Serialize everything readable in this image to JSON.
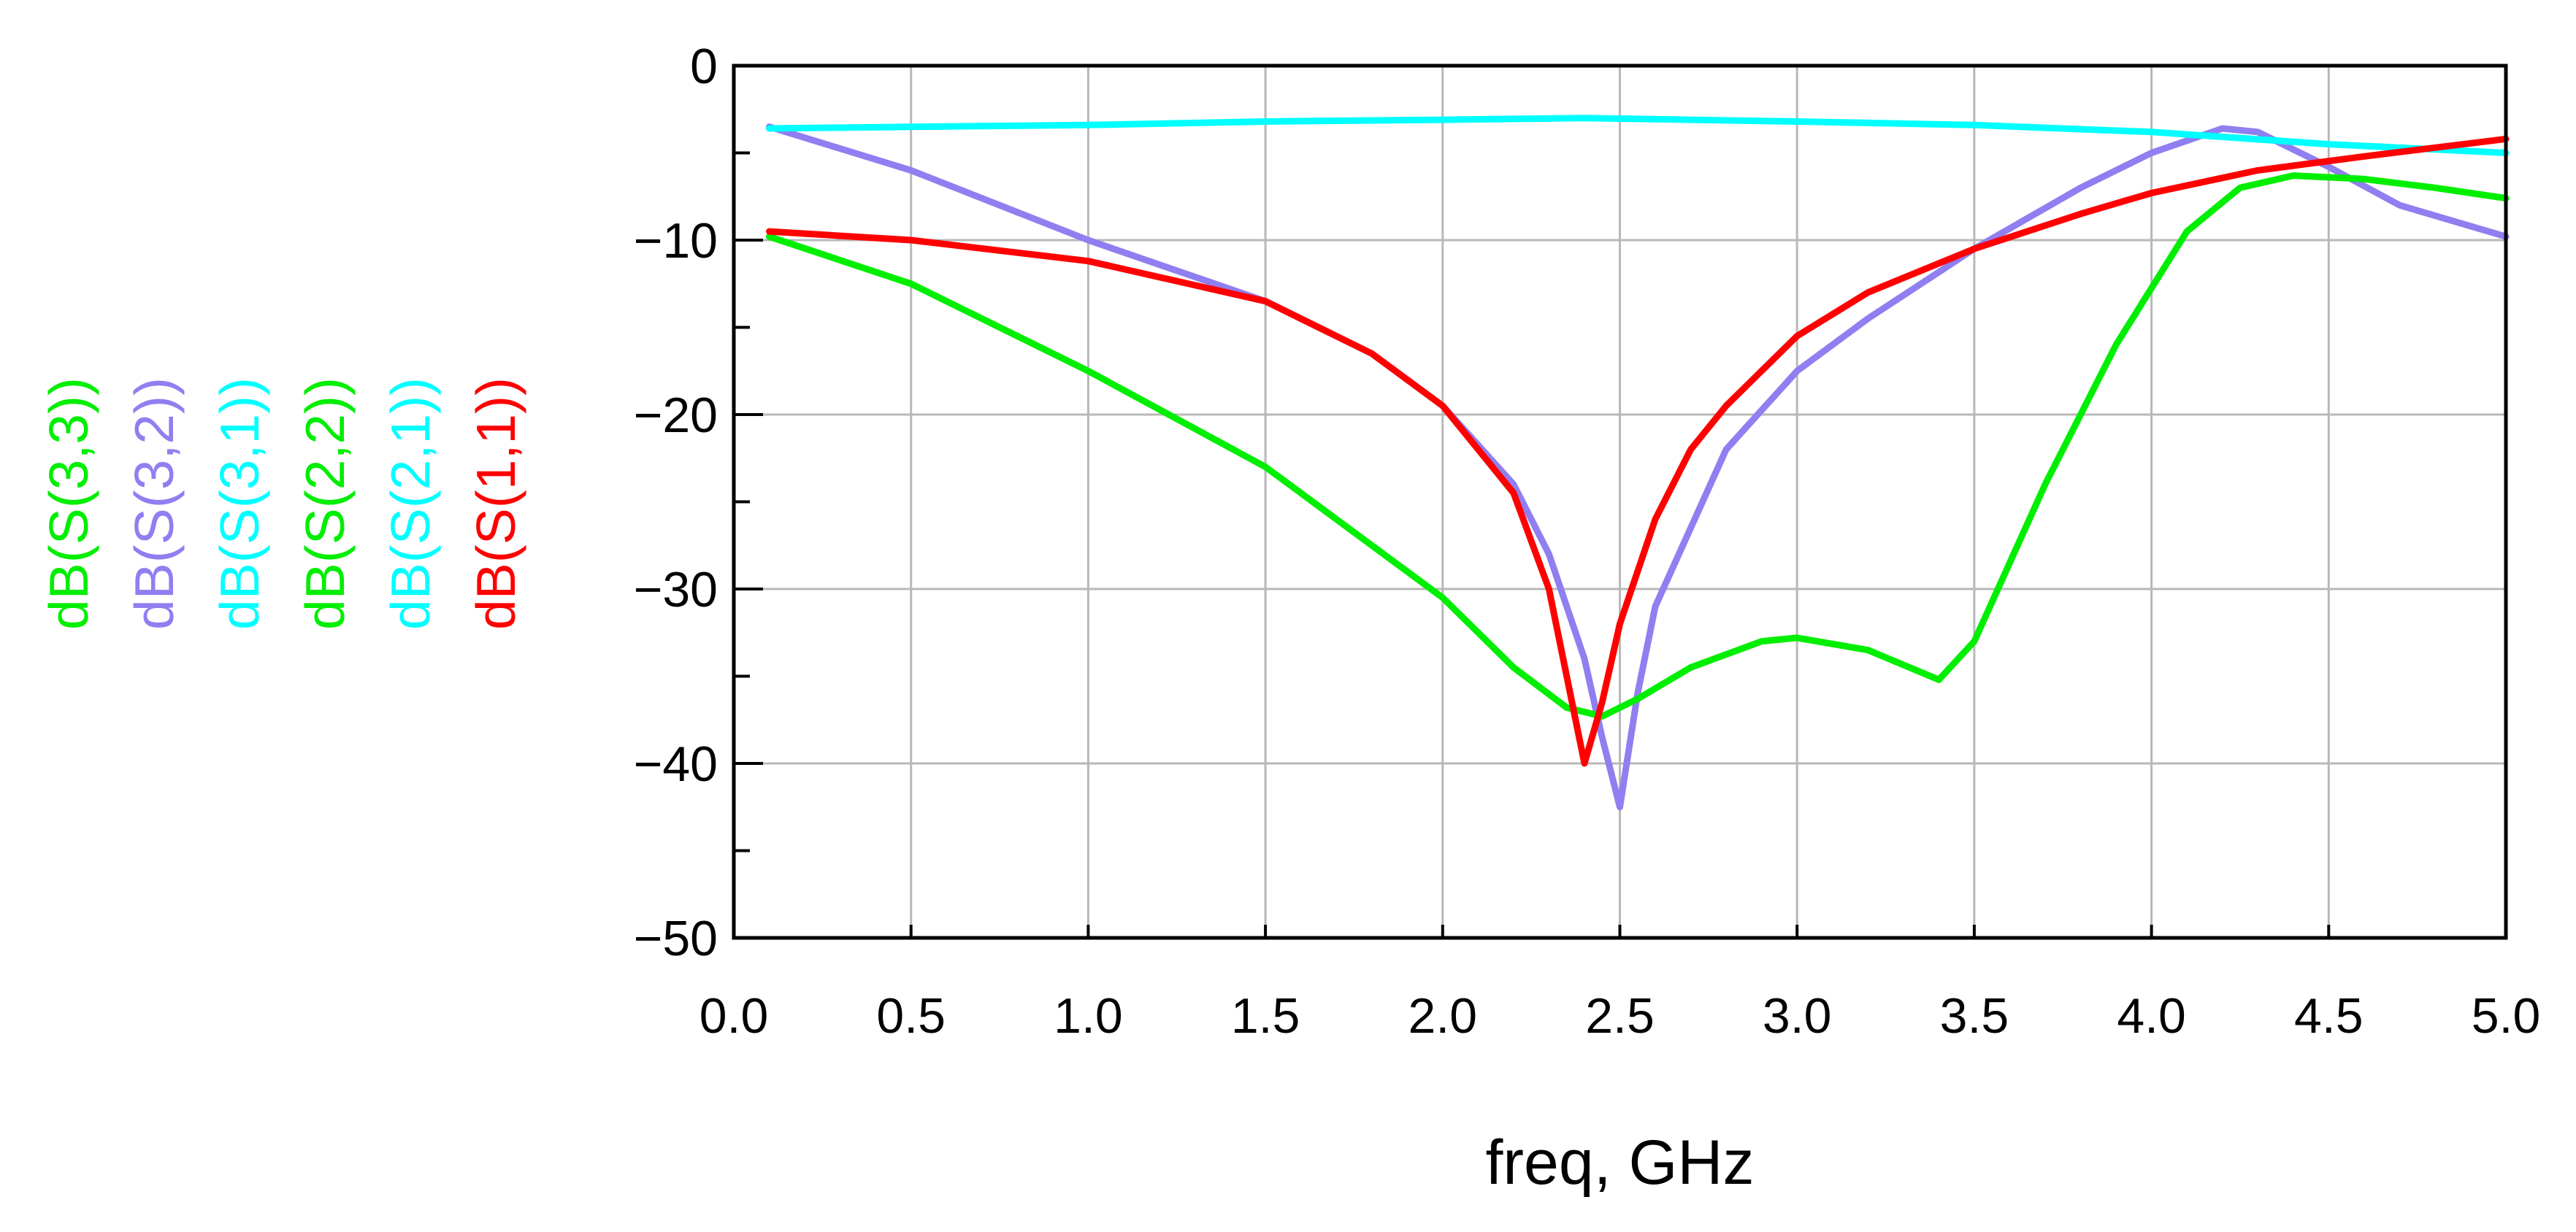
{
  "chart_data": {
    "type": "line",
    "xlabel": "freq, GHz",
    "ylabel": "",
    "xlim": [
      0.0,
      5.0
    ],
    "ylim": [
      -50,
      0
    ],
    "x_ticks": [
      "0.0",
      "0.5",
      "1.0",
      "1.5",
      "2.0",
      "2.5",
      "3.0",
      "3.5",
      "4.0",
      "4.5",
      "5.0"
    ],
    "y_ticks": [
      "0",
      "-10",
      "-20",
      "-30",
      "-40",
      "-50"
    ],
    "grid": true,
    "legend_position": "left-vertical",
    "series": [
      {
        "name": "dB(S(3,3))",
        "color": "#00ee00",
        "x": [
          0.1,
          0.5,
          1.0,
          1.5,
          2.0,
          2.2,
          2.35,
          2.45,
          2.55,
          2.7,
          2.9,
          3.0,
          3.2,
          3.4,
          3.5,
          3.7,
          3.9,
          4.1,
          4.25,
          4.4,
          4.6,
          4.8,
          5.0
        ],
        "values": [
          -9.8,
          -12.5,
          -17.5,
          -23.0,
          -30.5,
          -34.5,
          -36.8,
          -37.3,
          -36.3,
          -34.5,
          -33.0,
          -32.8,
          -33.5,
          -35.2,
          -33.0,
          -24.0,
          -16.0,
          -9.5,
          -7.0,
          -6.3,
          -6.5,
          -7.0,
          -7.6
        ]
      },
      {
        "name": "dB(S(3,2))",
        "color": "#8f7ff0",
        "x": [
          0.1,
          0.5,
          1.0,
          1.5,
          1.8,
          2.0,
          2.2,
          2.3,
          2.4,
          2.45,
          2.5,
          2.55,
          2.6,
          2.8,
          3.0,
          3.2,
          3.5,
          3.8,
          4.0,
          4.2,
          4.3,
          4.5,
          4.7,
          5.0
        ],
        "values": [
          -3.5,
          -6.0,
          -10.0,
          -13.5,
          -16.5,
          -19.5,
          -24.0,
          -28.0,
          -34.0,
          -38.5,
          -42.5,
          -36.0,
          -31.0,
          -22.0,
          -17.5,
          -14.5,
          -10.5,
          -7.0,
          -5.0,
          -3.6,
          -3.8,
          -5.8,
          -8.0,
          -9.8
        ]
      },
      {
        "name": "dB(S(3,1))",
        "color": "#00ffff",
        "x": [
          0.1,
          0.5,
          1.0,
          1.5,
          2.0,
          2.4,
          3.0,
          3.5,
          4.0,
          4.5,
          5.0
        ],
        "values": [
          -3.6,
          -3.5,
          -3.4,
          -3.2,
          -3.1,
          -3.0,
          -3.2,
          -3.4,
          -3.8,
          -4.5,
          -5.0
        ]
      },
      {
        "name": "dB(S(2,2))",
        "color": "#00ee00",
        "x": [],
        "values": []
      },
      {
        "name": "dB(S(2,1))",
        "color": "#00ffff",
        "x": [],
        "values": []
      },
      {
        "name": "dB(S(1,1))",
        "color": "#ff0000",
        "x": [
          0.1,
          0.5,
          1.0,
          1.5,
          1.8,
          2.0,
          2.2,
          2.3,
          2.35,
          2.4,
          2.45,
          2.5,
          2.6,
          2.7,
          2.8,
          3.0,
          3.2,
          3.5,
          3.8,
          4.0,
          4.3,
          4.6,
          5.0
        ],
        "values": [
          -9.5,
          -10.0,
          -11.2,
          -13.5,
          -16.5,
          -19.5,
          -24.5,
          -30.0,
          -35.0,
          -40.0,
          -36.5,
          -32.0,
          -26.0,
          -22.0,
          -19.5,
          -15.5,
          -13.0,
          -10.5,
          -8.5,
          -7.3,
          -6.0,
          -5.2,
          -4.2
        ]
      }
    ]
  }
}
